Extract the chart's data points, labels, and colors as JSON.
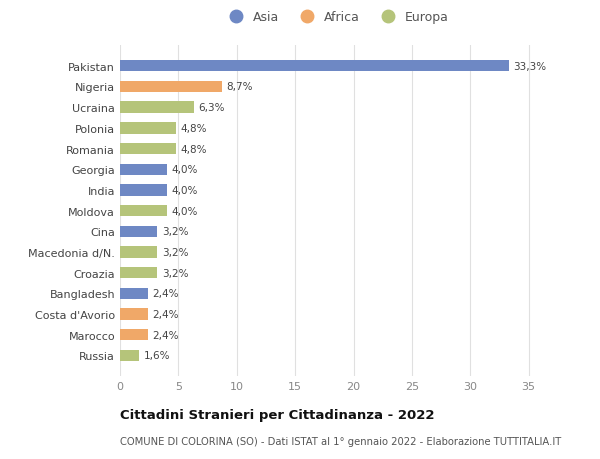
{
  "categories": [
    "Russia",
    "Marocco",
    "Costa d'Avorio",
    "Bangladesh",
    "Croazia",
    "Macedonia d/N.",
    "Cina",
    "Moldova",
    "India",
    "Georgia",
    "Romania",
    "Polonia",
    "Ucraina",
    "Nigeria",
    "Pakistan"
  ],
  "values": [
    1.6,
    2.4,
    2.4,
    2.4,
    3.2,
    3.2,
    3.2,
    4.0,
    4.0,
    4.0,
    4.8,
    4.8,
    6.3,
    8.7,
    33.3
  ],
  "colors": [
    "#b5c47a",
    "#f0a868",
    "#f0a868",
    "#6e88c4",
    "#b5c47a",
    "#b5c47a",
    "#6e88c4",
    "#b5c47a",
    "#6e88c4",
    "#6e88c4",
    "#b5c47a",
    "#b5c47a",
    "#b5c47a",
    "#f0a868",
    "#6e88c4"
  ],
  "labels": [
    "1,6%",
    "2,4%",
    "2,4%",
    "2,4%",
    "3,2%",
    "3,2%",
    "3,2%",
    "4,0%",
    "4,0%",
    "4,0%",
    "4,8%",
    "4,8%",
    "6,3%",
    "8,7%",
    "33,3%"
  ],
  "legend": [
    {
      "label": "Asia",
      "color": "#6e88c4"
    },
    {
      "label": "Africa",
      "color": "#f0a868"
    },
    {
      "label": "Europa",
      "color": "#b5c47a"
    }
  ],
  "title": "Cittadini Stranieri per Cittadinanza - 2022",
  "subtitle": "COMUNE DI COLORINA (SO) - Dati ISTAT al 1° gennaio 2022 - Elaborazione TUTTITALIA.IT",
  "xlim": [
    0,
    37
  ],
  "xticks": [
    0,
    5,
    10,
    15,
    20,
    25,
    30,
    35
  ],
  "background_color": "#ffffff",
  "grid_color": "#e0e0e0",
  "bar_height": 0.55
}
